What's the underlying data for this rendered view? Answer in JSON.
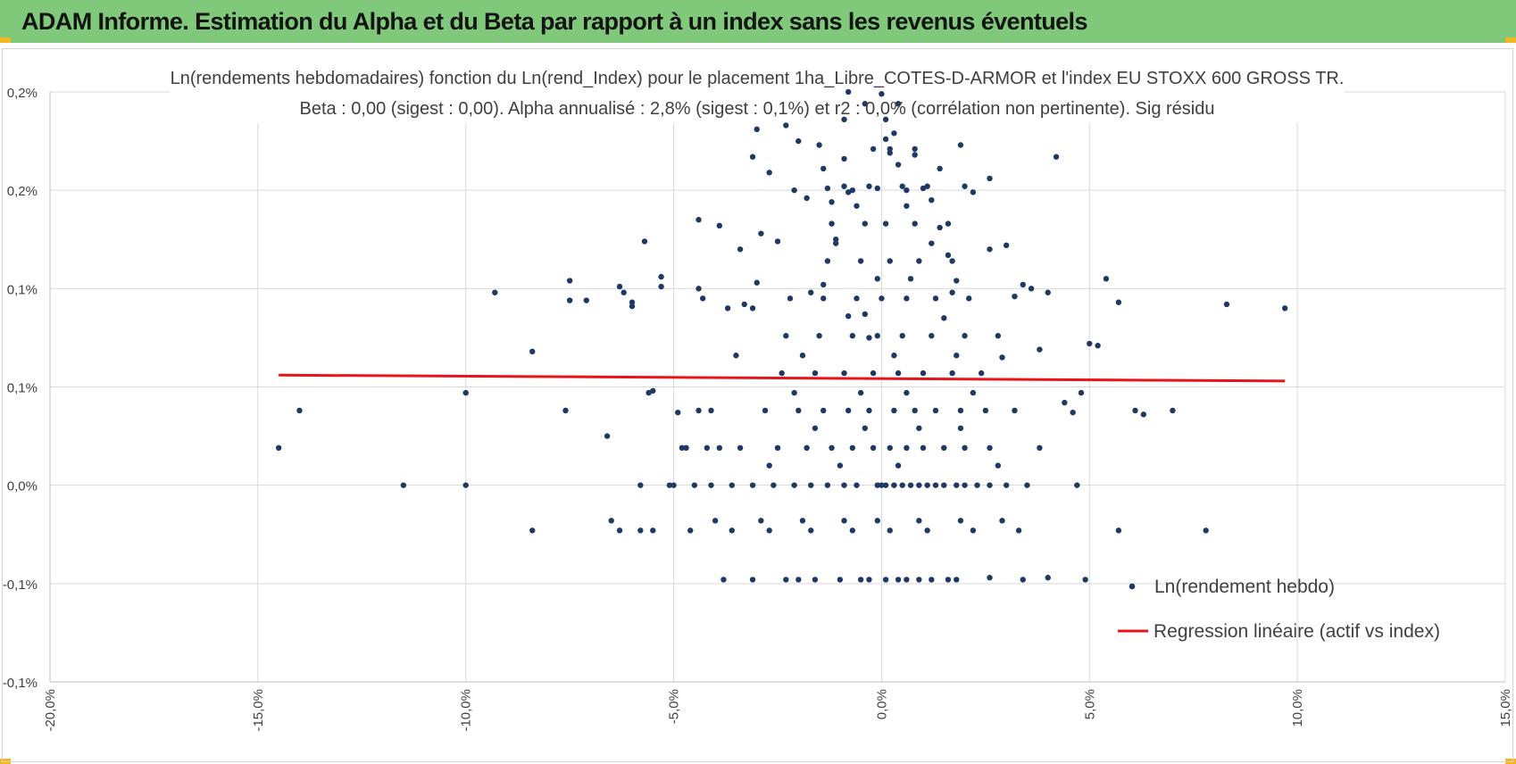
{
  "header": {
    "title": "ADAM Informe. Estimation du Alpha et du Beta par rapport à un index sans les revenus éventuels"
  },
  "colors": {
    "banner": "#80c87a",
    "accent": "#f2b720",
    "points": "#1f3864",
    "regression": "#e8141a",
    "grid": "#d9d9d9"
  },
  "chart_data": {
    "type": "scatter",
    "title": "Ln(rendements hebdomadaires) fonction du Ln(rend_Index) pour le placement 1ha_Libre_COTES-D-ARMOR et l'index EU STOXX 600 GROSS TR.",
    "subtitle": "Beta : 0,00 (sigest : 0,00).  Alpha annualisé : 2,8% (sigest : 0,1%) et r2 : 0,0% (corrélation non pertinente). Sig résidu",
    "xlabel": "",
    "ylabel": "",
    "xlim": [
      -20,
      15
    ],
    "ylim": [
      -0.1,
      0.2
    ],
    "grid": true,
    "legend_position": "bottom-right",
    "x_ticks": [
      {
        "value": -20,
        "label": "-20,0%"
      },
      {
        "value": -15,
        "label": "-15,0%"
      },
      {
        "value": -10,
        "label": "-10,0%"
      },
      {
        "value": -5,
        "label": "-5,0%"
      },
      {
        "value": 0,
        "label": "0,0%"
      },
      {
        "value": 5,
        "label": "5,0%"
      },
      {
        "value": 10,
        "label": "10,0%"
      },
      {
        "value": 15,
        "label": "15,0%"
      }
    ],
    "y_ticks": [
      {
        "value": 0.2,
        "label": "0,2%"
      },
      {
        "value": 0.15,
        "label": "0,2%"
      },
      {
        "value": 0.1,
        "label": "0,1%"
      },
      {
        "value": 0.05,
        "label": "0,1%"
      },
      {
        "value": 0.0,
        "label": "0,0%"
      },
      {
        "value": -0.05,
        "label": "-0,1%"
      },
      {
        "value": -0.1,
        "label": "-0,1%"
      }
    ],
    "series": [
      {
        "name": "Ln(rendement hebdo)",
        "type": "scatter",
        "color": "#1f3864",
        "points": [
          [
            -14.5,
            0.019
          ],
          [
            -14.0,
            0.038
          ],
          [
            -11.5,
            0.0
          ],
          [
            -10.0,
            0.0
          ],
          [
            -10.0,
            0.047
          ],
          [
            -9.3,
            0.098
          ],
          [
            -8.4,
            0.068
          ],
          [
            -8.4,
            -0.023
          ],
          [
            -7.6,
            0.038
          ],
          [
            -7.5,
            0.104
          ],
          [
            -7.5,
            0.094
          ],
          [
            -7.1,
            0.094
          ],
          [
            -6.6,
            0.025
          ],
          [
            -6.5,
            -0.018
          ],
          [
            -6.3,
            -0.023
          ],
          [
            -6.3,
            0.101
          ],
          [
            -6.2,
            0.098
          ],
          [
            -6.0,
            0.093
          ],
          [
            -6.0,
            0.091
          ],
          [
            -5.8,
            -0.023
          ],
          [
            -5.8,
            0.0
          ],
          [
            -5.7,
            0.124
          ],
          [
            -5.6,
            0.047
          ],
          [
            -5.5,
            -0.023
          ],
          [
            -5.5,
            0.048
          ],
          [
            -5.3,
            0.101
          ],
          [
            -5.3,
            0.106
          ],
          [
            -5.1,
            0.0
          ],
          [
            -5.0,
            0.0
          ],
          [
            -4.9,
            0.037
          ],
          [
            -4.8,
            0.019
          ],
          [
            -4.7,
            0.019
          ],
          [
            -4.6,
            -0.023
          ],
          [
            -4.5,
            0.0
          ],
          [
            -4.4,
            0.135
          ],
          [
            -4.4,
            0.1
          ],
          [
            -4.3,
            0.095
          ],
          [
            -4.1,
            0.038
          ],
          [
            -4.1,
            0.0
          ],
          [
            -3.9,
            0.132
          ],
          [
            -3.8,
            -0.048
          ],
          [
            -3.7,
            0.09
          ],
          [
            -3.5,
            0.066
          ],
          [
            -3.4,
            0.12
          ],
          [
            -3.3,
            0.092
          ],
          [
            -3.1,
            0.09
          ],
          [
            -3.0,
            0.103
          ],
          [
            -2.9,
            0.128
          ],
          [
            -2.7,
            0.159
          ],
          [
            -2.5,
            0.124
          ],
          [
            -2.3,
            -0.048
          ],
          [
            -2.1,
            0.15
          ],
          [
            -2.0,
            0.175
          ],
          [
            -1.8,
            0.146
          ],
          [
            -1.6,
            -0.048
          ],
          [
            -1.4,
            0.102
          ],
          [
            -1.3,
            0.151
          ],
          [
            -1.2,
            0.144
          ],
          [
            -1.1,
            0.125
          ],
          [
            -0.9,
            0.166
          ],
          [
            -0.8,
            0.149
          ],
          [
            -0.7,
            0.15
          ],
          [
            -0.5,
            -0.048
          ],
          [
            -0.4,
            0.087
          ],
          [
            -0.3,
            0.075
          ],
          [
            -0.1,
            0.151
          ],
          [
            0.1,
            0.176
          ],
          [
            0.2,
            0.169
          ],
          [
            0.3,
            0.179
          ],
          [
            0.4,
            0.163
          ],
          [
            0.6,
            0.15
          ],
          [
            0.8,
            0.168
          ],
          [
            1.0,
            0.151
          ],
          [
            1.2,
            0.145
          ],
          [
            1.4,
            0.131
          ],
          [
            1.6,
            0.117
          ],
          [
            1.8,
            0.104
          ],
          [
            2.0,
            0.152
          ],
          [
            2.2,
            0.149
          ],
          [
            2.6,
            0.156
          ],
          [
            2.9,
            0.065
          ],
          [
            3.0,
            0.122
          ],
          [
            3.2,
            0.096
          ],
          [
            3.4,
            0.102
          ],
          [
            3.6,
            0.1
          ],
          [
            3.8,
            0.069
          ],
          [
            4.0,
            0.098
          ],
          [
            4.2,
            0.167
          ],
          [
            4.4,
            0.042
          ],
          [
            4.6,
            0.037
          ],
          [
            4.8,
            0.047
          ],
          [
            5.0,
            0.072
          ],
          [
            5.2,
            0.071
          ],
          [
            5.4,
            0.105
          ],
          [
            5.7,
            0.093
          ],
          [
            5.7,
            -0.023
          ],
          [
            6.1,
            0.038
          ],
          [
            6.3,
            0.036
          ],
          [
            7.0,
            0.038
          ],
          [
            7.8,
            -0.023
          ],
          [
            8.3,
            0.092
          ],
          [
            9.7,
            0.09
          ],
          [
            4.9,
            -0.048
          ],
          [
            4.0,
            -0.047
          ],
          [
            3.4,
            -0.048
          ],
          [
            2.6,
            -0.047
          ],
          [
            1.8,
            -0.048
          ],
          [
            1.2,
            -0.048
          ],
          [
            0.6,
            -0.048
          ],
          [
            -0.1,
            0.0
          ],
          [
            0.0,
            0.0
          ],
          [
            0.1,
            0.0
          ],
          [
            0.3,
            0.0
          ],
          [
            0.5,
            0.0
          ],
          [
            0.7,
            0.0
          ],
          [
            0.9,
            0.0
          ],
          [
            1.1,
            0.0
          ],
          [
            1.3,
            0.0
          ],
          [
            1.5,
            0.0
          ],
          [
            1.8,
            0.0
          ],
          [
            2.0,
            0.0
          ],
          [
            2.3,
            0.0
          ],
          [
            2.6,
            0.0
          ],
          [
            3.0,
            0.0
          ],
          [
            3.5,
            0.0
          ],
          [
            4.7,
            0.0
          ],
          [
            -0.6,
            0.0
          ],
          [
            -0.9,
            0.0
          ],
          [
            -1.3,
            0.0
          ],
          [
            -1.7,
            0.0
          ],
          [
            -2.1,
            0.0
          ],
          [
            -2.6,
            0.0
          ],
          [
            -3.1,
            0.0
          ],
          [
            -3.6,
            0.0
          ],
          [
            -0.2,
            0.019
          ],
          [
            0.2,
            0.019
          ],
          [
            0.6,
            0.019
          ],
          [
            1.0,
            0.019
          ],
          [
            1.5,
            0.019
          ],
          [
            2.0,
            0.019
          ],
          [
            2.6,
            0.019
          ],
          [
            3.8,
            0.019
          ],
          [
            -0.7,
            0.019
          ],
          [
            -1.2,
            0.019
          ],
          [
            -1.8,
            0.019
          ],
          [
            -2.5,
            0.019
          ],
          [
            -3.4,
            0.019
          ],
          [
            -0.3,
            0.038
          ],
          [
            0.3,
            0.038
          ],
          [
            0.8,
            0.038
          ],
          [
            1.3,
            0.038
          ],
          [
            1.9,
            0.038
          ],
          [
            2.5,
            0.038
          ],
          [
            3.2,
            0.038
          ],
          [
            -0.8,
            0.038
          ],
          [
            -1.4,
            0.038
          ],
          [
            -2.0,
            0.038
          ],
          [
            -2.8,
            0.038
          ],
          [
            -0.2,
            0.057
          ],
          [
            0.4,
            0.057
          ],
          [
            1.0,
            0.057
          ],
          [
            1.7,
            0.057
          ],
          [
            2.4,
            0.057
          ],
          [
            -0.9,
            0.057
          ],
          [
            -1.6,
            0.057
          ],
          [
            -2.4,
            0.057
          ],
          [
            -0.1,
            0.076
          ],
          [
            0.5,
            0.076
          ],
          [
            1.2,
            0.076
          ],
          [
            2.0,
            0.076
          ],
          [
            2.8,
            0.076
          ],
          [
            -0.7,
            0.076
          ],
          [
            -1.5,
            0.076
          ],
          [
            -2.3,
            0.076
          ],
          [
            0.0,
            0.095
          ],
          [
            0.6,
            0.095
          ],
          [
            1.3,
            0.095
          ],
          [
            2.1,
            0.095
          ],
          [
            -0.6,
            0.095
          ],
          [
            -1.4,
            0.095
          ],
          [
            -2.2,
            0.095
          ],
          [
            0.2,
            0.114
          ],
          [
            0.9,
            0.114
          ],
          [
            1.7,
            0.114
          ],
          [
            -0.5,
            0.114
          ],
          [
            -1.3,
            0.114
          ],
          [
            0.1,
            0.133
          ],
          [
            0.8,
            0.133
          ],
          [
            1.6,
            0.133
          ],
          [
            -0.4,
            0.133
          ],
          [
            -1.2,
            0.133
          ],
          [
            0.5,
            0.152
          ],
          [
            1.1,
            0.152
          ],
          [
            -0.3,
            0.152
          ],
          [
            -0.9,
            0.152
          ],
          [
            0.2,
            0.171
          ],
          [
            0.8,
            0.171
          ],
          [
            -0.2,
            0.171
          ],
          [
            0.1,
            0.186
          ],
          [
            -0.9,
            0.186
          ],
          [
            -1.5,
            0.173
          ],
          [
            1.9,
            0.173
          ],
          [
            -3.1,
            0.167
          ],
          [
            -2.3,
            0.183
          ],
          [
            -3.0,
            0.181
          ],
          [
            -1.1,
            0.123
          ],
          [
            1.2,
            0.123
          ],
          [
            0.7,
            0.105
          ],
          [
            -0.1,
            0.105
          ],
          [
            1.5,
            0.085
          ],
          [
            -0.8,
            0.086
          ],
          [
            0.3,
            0.066
          ],
          [
            1.8,
            0.066
          ],
          [
            -1.9,
            0.066
          ],
          [
            0.6,
            0.047
          ],
          [
            -0.5,
            0.047
          ],
          [
            2.2,
            0.047
          ],
          [
            -2.1,
            0.047
          ],
          [
            0.9,
            0.029
          ],
          [
            -0.4,
            0.029
          ],
          [
            1.9,
            0.029
          ],
          [
            -1.6,
            0.029
          ],
          [
            0.4,
            0.01
          ],
          [
            -1.0,
            0.01
          ],
          [
            2.8,
            0.01
          ],
          [
            -2.7,
            0.01
          ],
          [
            -0.1,
            -0.018
          ],
          [
            0.9,
            -0.018
          ],
          [
            1.9,
            -0.018
          ],
          [
            2.9,
            -0.018
          ],
          [
            -0.9,
            -0.018
          ],
          [
            -1.9,
            -0.018
          ],
          [
            -2.9,
            -0.018
          ],
          [
            -4.0,
            -0.018
          ],
          [
            0.2,
            -0.023
          ],
          [
            1.1,
            -0.023
          ],
          [
            2.2,
            -0.023
          ],
          [
            3.3,
            -0.023
          ],
          [
            -0.7,
            -0.023
          ],
          [
            -1.7,
            -0.023
          ],
          [
            -2.7,
            -0.023
          ],
          [
            -3.6,
            -0.023
          ],
          [
            0.1,
            -0.048
          ],
          [
            0.4,
            -0.048
          ],
          [
            0.9,
            -0.048
          ],
          [
            1.6,
            -0.048
          ],
          [
            -0.3,
            -0.048
          ],
          [
            -1.0,
            -0.048
          ],
          [
            -2.0,
            -0.048
          ],
          [
            -3.1,
            -0.048
          ],
          [
            -3.9,
            0.019
          ],
          [
            -4.2,
            0.019
          ],
          [
            -4.4,
            0.038
          ],
          [
            -1.7,
            0.098
          ],
          [
            1.7,
            0.098
          ],
          [
            2.6,
            0.12
          ],
          [
            -0.6,
            0.142
          ],
          [
            0.6,
            0.142
          ],
          [
            1.4,
            0.161
          ],
          [
            -1.4,
            0.161
          ],
          [
            0.4,
            0.194
          ],
          [
            -0.4,
            0.194
          ],
          [
            0.0,
            0.199
          ],
          [
            -0.8,
            0.2
          ]
        ]
      },
      {
        "name": "Regression linéaire (actif vs index)",
        "type": "line",
        "color": "#e8141a",
        "points": [
          [
            -14.5,
            0.056
          ],
          [
            9.7,
            0.053
          ]
        ]
      }
    ]
  }
}
